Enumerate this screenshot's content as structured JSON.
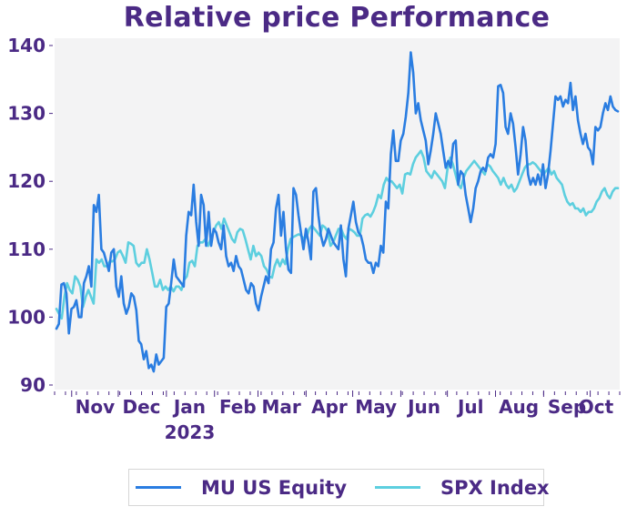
{
  "chart_data": {
    "type": "line",
    "title": "Relative price Performance",
    "xlabel": "",
    "ylabel": "",
    "ylim": [
      90,
      140
    ],
    "yticks": [
      90,
      100,
      110,
      120,
      130,
      140
    ],
    "x_range": [
      "2022-10-21",
      "2023-10-20"
    ],
    "xticks": [
      {
        "label": "Nov",
        "date": "2022-11-01"
      },
      {
        "label": "Dec",
        "date": "2022-12-01"
      },
      {
        "label": "Jan",
        "sublabel": "2023",
        "date": "2023-01-01"
      },
      {
        "label": "Feb",
        "date": "2023-02-01"
      },
      {
        "label": "Mar",
        "date": "2023-03-01"
      },
      {
        "label": "Apr",
        "date": "2023-04-01"
      },
      {
        "label": "May",
        "date": "2023-05-01"
      },
      {
        "label": "Jun",
        "date": "2023-06-01"
      },
      {
        "label": "Jul",
        "date": "2023-07-01"
      },
      {
        "label": "Aug",
        "date": "2023-08-01"
      },
      {
        "label": "Sep",
        "date": "2023-09-01"
      },
      {
        "label": "Oct",
        "date": "2023-10-01"
      }
    ],
    "grid": false,
    "legend_position": "bottom",
    "background": "#f3f3f4",
    "series": [
      {
        "name": "MU US Equity",
        "color": "#2a7de1",
        "values": [
          98.3,
          99.0,
          104.8,
          105.0,
          103.5,
          97.6,
          101.2,
          101.5,
          102.5,
          100.0,
          100.0,
          105.0,
          106.0,
          107.5,
          104.5,
          116.5,
          115.5,
          118.0,
          110.0,
          109.5,
          108.2,
          106.8,
          109.5,
          110.0,
          104.5,
          103.0,
          106.0,
          102.0,
          100.5,
          101.5,
          103.5,
          103.0,
          101.0,
          96.5,
          96.0,
          93.8,
          95.0,
          92.5,
          93.0,
          92.0,
          94.5,
          93.0,
          93.5,
          94.0,
          101.5,
          102.0,
          105.0,
          108.5,
          106.0,
          105.5,
          105.0,
          104.5,
          112.0,
          115.5,
          115.0,
          119.5,
          114.0,
          110.5,
          118.0,
          116.5,
          110.5,
          115.5,
          110.5,
          113.0,
          112.5,
          111.0,
          110.0,
          113.5,
          109.0,
          107.5,
          108.0,
          106.8,
          109.0,
          107.5,
          107.0,
          105.5,
          104.0,
          103.5,
          105.0,
          104.5,
          102.0,
          101.0,
          103.0,
          104.5,
          106.0,
          105.0,
          110.0,
          111.0,
          116.0,
          118.0,
          112.0,
          115.5,
          110.0,
          107.0,
          106.5,
          119.0,
          118.0,
          115.0,
          112.5,
          110.0,
          113.0,
          111.0,
          108.5,
          118.5,
          119.0,
          115.0,
          112.0,
          110.5,
          111.5,
          113.0,
          112.0,
          111.0,
          110.5,
          110.0,
          113.5,
          108.5,
          106.0,
          113.0,
          115.0,
          117.0,
          114.0,
          112.5,
          112.0,
          110.5,
          108.5,
          108.0,
          108.0,
          106.5,
          108.0,
          107.5,
          110.5,
          109.5,
          117.0,
          116.0,
          124.0,
          127.5,
          123.0,
          123.0,
          126.0,
          127.0,
          129.5,
          133.0,
          139.0,
          136.0,
          130.0,
          131.5,
          129.0,
          127.5,
          126.0,
          122.5,
          124.5,
          127.0,
          130.0,
          128.5,
          127.0,
          124.5,
          122.0,
          123.0,
          122.0,
          125.5,
          126.0,
          119.5,
          121.5,
          121.0,
          118.0,
          116.0,
          114.0,
          116.0,
          119.0,
          120.0,
          121.5,
          122.0,
          121.5,
          123.5,
          124.0,
          123.5,
          125.5,
          134.0,
          134.2,
          133.0,
          128.0,
          127.0,
          130.0,
          128.5,
          125.0,
          121.0,
          124.0,
          128.0,
          126.0,
          121.0,
          119.5,
          120.5,
          119.5,
          121.0,
          119.5,
          122.5,
          119.0,
          121.0,
          124.5,
          128.5,
          132.5,
          132.0,
          132.5,
          131.0,
          132.0,
          131.5,
          134.5,
          130.5,
          132.5,
          129.0,
          127.0,
          125.5,
          127.0,
          125.0,
          124.5,
          122.5,
          128.0,
          127.5,
          128.0,
          130.0,
          131.5,
          130.5,
          132.5,
          131.0,
          130.5,
          130.3
        ]
      },
      {
        "name": "SPX Index",
        "color": "#5dcfdf",
        "values": [
          101.2,
          100.5,
          99.8,
          103.0,
          105.0,
          104.0,
          103.5,
          106.0,
          105.5,
          104.5,
          101.5,
          103.0,
          104.0,
          103.0,
          102.0,
          108.5,
          108.0,
          108.5,
          107.5,
          107.5,
          108.2,
          108.2,
          108.5,
          109.5,
          109.8,
          109.0,
          108.0,
          111.0,
          110.8,
          110.5,
          108.0,
          107.5,
          108.0,
          108.0,
          110.0,
          108.5,
          106.5,
          104.5,
          104.5,
          105.5,
          104.0,
          104.5,
          104.0,
          104.5,
          103.8,
          104.5,
          104.5,
          104.0,
          105.5,
          106.0,
          108.0,
          108.3,
          107.5,
          110.5,
          111.0,
          111.0,
          111.5,
          110.5,
          111.5,
          112.5,
          113.5,
          114.0,
          113.0,
          114.5,
          113.5,
          112.5,
          111.5,
          111.0,
          112.5,
          113.0,
          112.8,
          111.5,
          110.0,
          108.5,
          110.5,
          109.0,
          109.5,
          109.0,
          107.5,
          107.0,
          106.0,
          105.8,
          107.5,
          108.5,
          107.5,
          108.5,
          107.8,
          110.0,
          111.5,
          111.8,
          112.0,
          112.2,
          112.0,
          111.5,
          111.8,
          113.0,
          113.5,
          113.0,
          112.5,
          112.0,
          113.5,
          113.2,
          112.5,
          110.5,
          111.0,
          112.0,
          113.0,
          113.0,
          112.0,
          111.5,
          113.0,
          112.8,
          112.5,
          112.0,
          112.0,
          114.5,
          115.0,
          115.2,
          114.8,
          115.5,
          116.5,
          118.0,
          117.5,
          119.5,
          120.5,
          120.0,
          120.0,
          119.5,
          119.0,
          119.5,
          118.2,
          121.0,
          121.2,
          121.0,
          122.5,
          123.5,
          124.0,
          124.5,
          123.5,
          121.5,
          121.0,
          120.5,
          121.5,
          121.0,
          120.5,
          120.0,
          119.0,
          122.0,
          123.5,
          122.5,
          121.0,
          119.5,
          119.0,
          120.5,
          121.5,
          122.0,
          122.5,
          123.0,
          122.5,
          122.0,
          121.5,
          121.0,
          122.5,
          122.2,
          121.5,
          121.0,
          120.5,
          119.5,
          120.5,
          119.5,
          119.0,
          119.5,
          118.5,
          119.0,
          120.0,
          121.0,
          122.0,
          122.5,
          122.5,
          122.8,
          122.5,
          122.0,
          121.5,
          121.0,
          121.5,
          122.0,
          121.0,
          121.5,
          120.5,
          120.0,
          119.5,
          118.0,
          117.0,
          116.5,
          116.8,
          116.0,
          116.0,
          115.5,
          116.0,
          115.0,
          115.5,
          115.5,
          116.0,
          117.0,
          117.5,
          118.5,
          119.0,
          118.0,
          117.5,
          118.5,
          119.0,
          119.0
        ]
      }
    ]
  },
  "legend": {
    "items": [
      {
        "label": "MU US Equity",
        "color": "#2a7de1"
      },
      {
        "label": "SPX Index",
        "color": "#5dcfdf"
      }
    ]
  }
}
